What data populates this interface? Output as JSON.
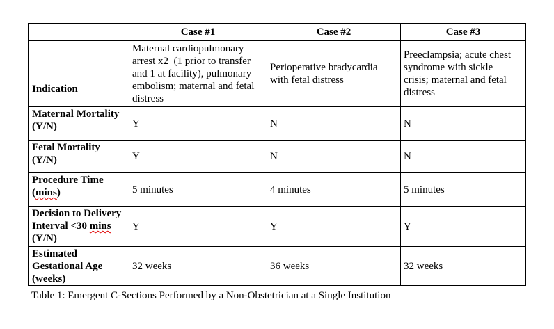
{
  "table": {
    "columns": [
      "",
      "Case #1",
      "Case #2",
      "Case #3"
    ],
    "rows": [
      {
        "label": "Indication",
        "values": [
          "Maternal cardiopulmonary\narrest x2  (1 prior to transfer\nand 1 at facility), pulmonary\nembolism; maternal and fetal\ndistress",
          "Perioperative bradycardia\nwith fetal distress",
          "Preeclampsia; acute chest\nsyndrome with sickle\ncrisis; maternal and fetal\ndistress"
        ]
      },
      {
        "label": "Maternal Mortality\n(Y/N)",
        "values": [
          "Y",
          "N",
          "N"
        ]
      },
      {
        "label": "Fetal Mortality\n(Y/N)",
        "values": [
          "Y",
          "N",
          "N"
        ]
      },
      {
        "label": "Procedure Time\n(mins)",
        "values": [
          "5 minutes",
          "4 minutes",
          "5 minutes"
        ]
      },
      {
        "label": "Decision to Delivery\nInterval <30 mins\n(Y/N)",
        "values": [
          "Y",
          "Y",
          "Y"
        ]
      },
      {
        "label": "Estimated\nGestational Age\n(weeks)",
        "values": [
          "32 weeks",
          "36 weeks",
          "32 weeks"
        ]
      }
    ]
  },
  "caption": "Table 1: Emergent C-Sections Performed by a Non-Obstetrician at a Single Institution",
  "spellcheck_words": [
    "mins"
  ],
  "colors": {
    "border": "#000000",
    "text": "#000000",
    "spellcheck_underline": "#e00000",
    "background": "#ffffff"
  }
}
